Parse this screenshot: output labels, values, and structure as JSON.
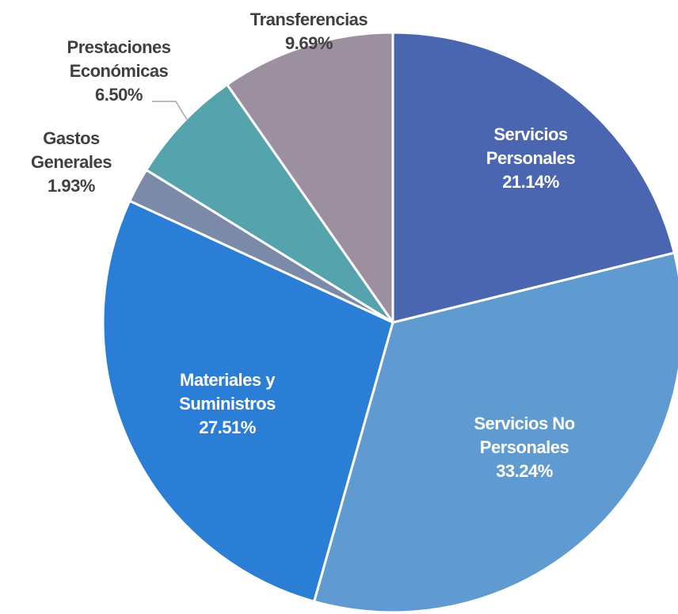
{
  "chart_data": {
    "type": "pie",
    "categories": [
      "Servicios Personales",
      "Servicios No Personales",
      "Materiales y Suministros",
      "Gastos Generales",
      "Prestaciones Económicas",
      "Transferencias"
    ],
    "values": [
      21.14,
      33.24,
      27.51,
      1.93,
      6.5,
      9.69
    ],
    "value_labels": [
      "21.14%",
      "33.24%",
      "27.51%",
      "1.93%",
      "6.50%",
      "9.69%"
    ],
    "colors": [
      "#4a66b0",
      "#5f9bd0",
      "#2a7ed6",
      "#7b8aa8",
      "#55a3ad",
      "#9c8f9f"
    ]
  }
}
